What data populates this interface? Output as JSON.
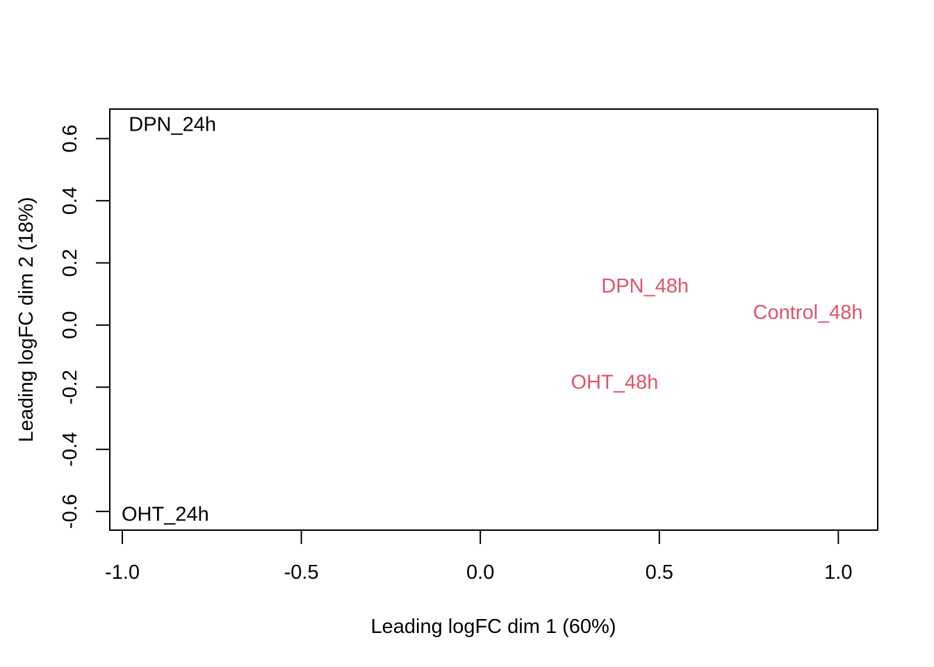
{
  "chart_data": {
    "type": "scatter",
    "title": "",
    "xlabel": "Leading logFC dim 1 (60%)",
    "ylabel": "Leading logFC dim 2 (18%)",
    "xlim": [
      -1.035,
      1.11
    ],
    "ylim": [
      -0.66,
      0.695
    ],
    "xticks": [
      {
        "value": -1.0,
        "label": "-1.0"
      },
      {
        "value": -0.5,
        "label": "-0.5"
      },
      {
        "value": 0.0,
        "label": "0.0"
      },
      {
        "value": 0.5,
        "label": "0.5"
      },
      {
        "value": 1.0,
        "label": "1.0"
      }
    ],
    "yticks": [
      {
        "value": -0.6,
        "label": "-0.6"
      },
      {
        "value": -0.4,
        "label": "-0.4"
      },
      {
        "value": -0.2,
        "label": "-0.2"
      },
      {
        "value": 0.0,
        "label": "0.0"
      },
      {
        "value": 0.2,
        "label": "0.2"
      },
      {
        "value": 0.4,
        "label": "0.4"
      },
      {
        "value": 0.6,
        "label": "0.6"
      }
    ],
    "grid": false,
    "points": [
      {
        "label": "DPN_24h",
        "x": -0.86,
        "y": 0.645,
        "color": "#000000"
      },
      {
        "label": "OHT_24h",
        "x": -0.88,
        "y": -0.61,
        "color": "#000000"
      },
      {
        "label": "DPN_48h",
        "x": 0.46,
        "y": 0.125,
        "color": "#DF536B"
      },
      {
        "label": "Control_48h",
        "x": 0.915,
        "y": 0.04,
        "color": "#DF536B"
      },
      {
        "label": "OHT_48h",
        "x": 0.375,
        "y": -0.185,
        "color": "#DF536B"
      }
    ]
  }
}
